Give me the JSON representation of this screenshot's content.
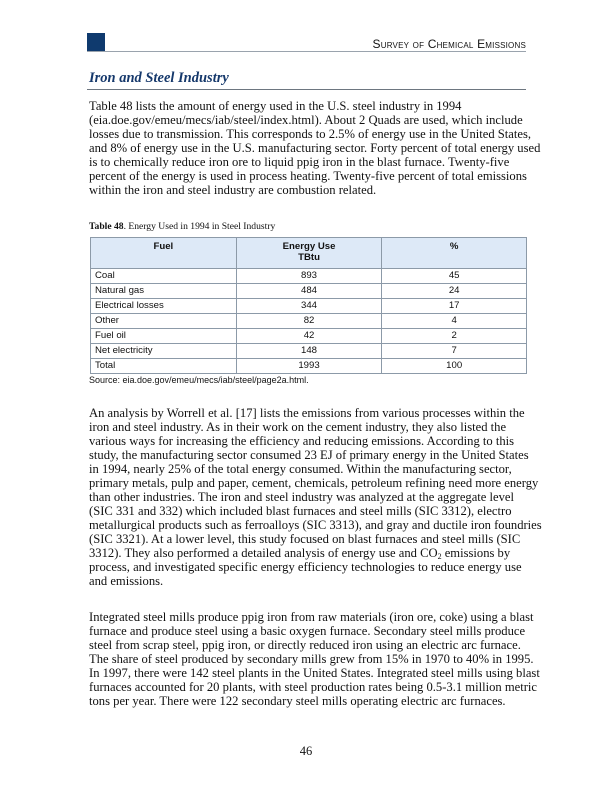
{
  "header": {
    "running_title": "Survey of Chemical Emissions",
    "accent_color": "#0f3a6e"
  },
  "section_title": "Iron and Steel Industry",
  "paragraph1": [
    "Table 48 lists the amount of energy used in the U.S. steel industry in 1994",
    "(eia.doe.gov/emeu/mecs/iab/steel/index.html). About 2 Quads are used, which include",
    "losses due to transmission. This corresponds to 2.5% of energy use in the United States,",
    "and 8% of energy use in the U.S. manufacturing sector. Forty percent of total energy used",
    "is to chemically reduce iron ore to liquid ppig iron in the blast furnace.  Twenty-five",
    "percent of the energy is used in process heating.  Twenty-five percent of total emissions",
    "within the iron and steel industry are combustion related."
  ],
  "table": {
    "caption_label": "Table 48",
    "caption_text": ".  Energy Used in 1994 in Steel Industry",
    "headers": [
      "Fuel",
      "Energy Use",
      "TBtu",
      "%"
    ],
    "rows": [
      [
        "Coal",
        "893",
        "45"
      ],
      [
        "Natural gas",
        "484",
        "24"
      ],
      [
        "Electrical losses",
        "344",
        "17"
      ],
      [
        "Other",
        "82",
        "4"
      ],
      [
        "Fuel oil",
        "42",
        "2"
      ],
      [
        "Net electricity",
        "148",
        "7"
      ],
      [
        "Total",
        "1993",
        "100"
      ]
    ],
    "source": "Source: eia.doe.gov/emeu/mecs/iab/steel/page2a.html.",
    "header_bg": "#dde9f7"
  },
  "paragraph2": [
    "An analysis by Worrell et al. [17] lists the emissions from various processes within the",
    "iron and steel industry. As in their work on the cement industry, they also listed the",
    "various ways for increasing the efficiency and reducing emissions. According to this",
    "study, the manufacturing sector consumed 23 EJ of primary energy in the United States",
    "in 1994, nearly 25% of the total energy consumed. Within the manufacturing sector,",
    "primary metals, pulp and paper, cement, chemicals, petroleum refining need more energy",
    "than other industries.  The iron and steel industry was analyzed at the aggregate level",
    "(SIC 331 and 332) which included blast furnaces and steel mills (SIC 3312), electro",
    "metallurgical products such as ferroalloys (SIC 3313), and gray and ductile iron foundries",
    "(SIC 3321). At a lower level, this study focused on blast furnaces and steel mills (SIC"
  ],
  "paragraph2_co2_line": {
    "before": "3312).  They also performed a detailed analysis of energy use and CO",
    "sub": "2",
    "after": " emissions by"
  },
  "paragraph2_end": [
    "process, and investigated specific energy efficiency technologies to reduce energy use",
    "and emissions."
  ],
  "paragraph3": [
    "Integrated steel mills produce ppig iron from raw materials (iron ore, coke) using a blast",
    "furnace and produce steel using a basic oxygen furnace. Secondary steel mills produce",
    "steel from scrap steel, ppig iron, or directly reduced iron using an electric arc furnace.",
    "The share of steel produced by secondary mills grew from 15% in 1970 to 40% in 1995.",
    "In 1997, there were 142 steel plants in the United States. Integrated steel mills using blast",
    "furnaces accounted for 20 plants, with steel production rates being 0.5-3.1 million metric",
    "tons per year. There were 122 secondary steel mills operating electric arc furnaces."
  ],
  "page_number": "46"
}
